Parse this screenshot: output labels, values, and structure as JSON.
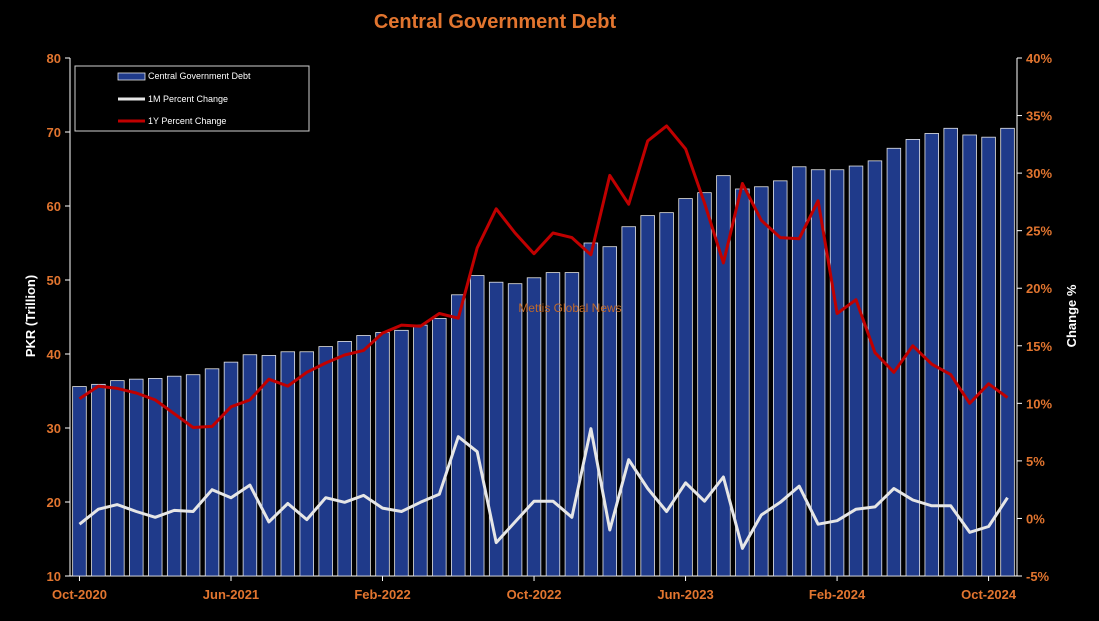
{
  "chart_data": {
    "type": "bar",
    "title": "Central Government Debt",
    "ylabel_left": "PKR (Trillion)",
    "ylabel_right": "Change %",
    "ylim_left": [
      10,
      80
    ],
    "yticks_left": [
      "10",
      "20",
      "30",
      "40",
      "50",
      "60",
      "70",
      "80"
    ],
    "ylim_right": [
      -5,
      40
    ],
    "yticks_right": [
      "-5%",
      "0%",
      "5%",
      "10%",
      "15%",
      "20%",
      "25%",
      "30%",
      "35%",
      "40%"
    ],
    "x_tick_labels": [
      {
        "index": 0,
        "label": "Oct-2020"
      },
      {
        "index": 8,
        "label": "Jun-2021"
      },
      {
        "index": 16,
        "label": "Feb-2022"
      },
      {
        "index": 24,
        "label": "Oct-2022"
      },
      {
        "index": 32,
        "label": "Jun-2023"
      },
      {
        "index": 40,
        "label": "Feb-2024"
      },
      {
        "index": 48,
        "label": "Oct-2024"
      }
    ],
    "categories": [
      "Oct-2020",
      "Nov-2020",
      "Dec-2020",
      "Jan-2021",
      "Feb-2021",
      "Mar-2021",
      "Apr-2021",
      "May-2021",
      "Jun-2021",
      "Jul-2021",
      "Aug-2021",
      "Sep-2021",
      "Oct-2021",
      "Nov-2021",
      "Dec-2021",
      "Jan-2022",
      "Feb-2022",
      "Mar-2022",
      "Apr-2022",
      "May-2022",
      "Jun-2022",
      "Jul-2022",
      "Aug-2022",
      "Sep-2022",
      "Oct-2022",
      "Nov-2022",
      "Dec-2022",
      "Jan-2023",
      "Feb-2023",
      "Mar-2023",
      "Apr-2023",
      "May-2023",
      "Jun-2023",
      "Jul-2023",
      "Aug-2023",
      "Sep-2023",
      "Oct-2023",
      "Nov-2023",
      "Dec-2023",
      "Jan-2024",
      "Feb-2024",
      "Mar-2024",
      "Apr-2024",
      "May-2024",
      "Jun-2024",
      "Jul-2024",
      "Aug-2024",
      "Sep-2024",
      "Oct-2024",
      "Nov-2024"
    ],
    "series": [
      {
        "name": "Central Government Debt",
        "type": "bar",
        "axis": "left",
        "values": [
          35.6,
          35.9,
          36.4,
          36.6,
          36.7,
          37.0,
          37.2,
          38.0,
          38.9,
          39.9,
          39.8,
          40.3,
          40.3,
          41.0,
          41.7,
          42.5,
          42.9,
          43.2,
          43.9,
          44.8,
          48.0,
          50.6,
          49.7,
          49.5,
          50.3,
          51.0,
          51.0,
          55.0,
          54.5,
          57.2,
          58.7,
          59.1,
          61.0,
          61.8,
          64.1,
          62.3,
          62.6,
          63.4,
          65.3,
          64.9,
          64.9,
          65.4,
          66.1,
          67.8,
          69.0,
          69.8,
          70.5,
          69.6,
          69.3,
          70.5
        ]
      },
      {
        "name": "1M Percent Change",
        "type": "line",
        "axis": "right",
        "values": [
          -0.5,
          0.8,
          1.2,
          0.6,
          0.1,
          0.7,
          0.6,
          2.5,
          1.8,
          2.9,
          -0.3,
          1.3,
          -0.1,
          1.8,
          1.4,
          2.0,
          0.9,
          0.6,
          1.4,
          2.1,
          7.1,
          5.8,
          -2.1,
          -0.3,
          1.5,
          1.5,
          0.1,
          7.8,
          -1.0,
          5.1,
          2.6,
          0.6,
          3.1,
          1.5,
          3.6,
          -2.6,
          0.3,
          1.4,
          2.8,
          -0.5,
          -0.2,
          0.8,
          1.0,
          2.6,
          1.6,
          1.1,
          1.1,
          -1.2,
          -0.7,
          1.8
        ]
      },
      {
        "name": "1Y Percent Change",
        "type": "line",
        "axis": "right",
        "values": [
          10.4,
          11.5,
          11.3,
          10.9,
          10.3,
          9.1,
          7.9,
          8.0,
          9.7,
          10.3,
          12.1,
          11.5,
          12.7,
          13.5,
          14.2,
          14.6,
          16.1,
          16.8,
          16.7,
          17.8,
          17.4,
          23.5,
          26.9,
          24.8,
          23.0,
          24.8,
          24.4,
          22.9,
          29.8,
          27.3,
          32.8,
          34.1,
          32.1,
          27.4,
          22.2,
          29.1,
          25.9,
          24.4,
          24.3,
          27.6,
          17.8,
          19.0,
          14.4,
          12.7,
          15.0,
          13.4,
          12.5,
          10.0,
          11.7,
          10.5
        ]
      }
    ],
    "legend_position": "top-left",
    "grid": false,
    "watermark": "Mettis Global News",
    "colors": {
      "background": "#000000",
      "bar_fill": "#1f3a8a",
      "bar_edge": "#e6e6e6",
      "line_1m": "#e6e6e6",
      "line_1y": "#c00000",
      "title": "#e2752f",
      "tick_text": "#e2752f",
      "axis": "#ffffff",
      "watermark": "#c0692a"
    }
  }
}
